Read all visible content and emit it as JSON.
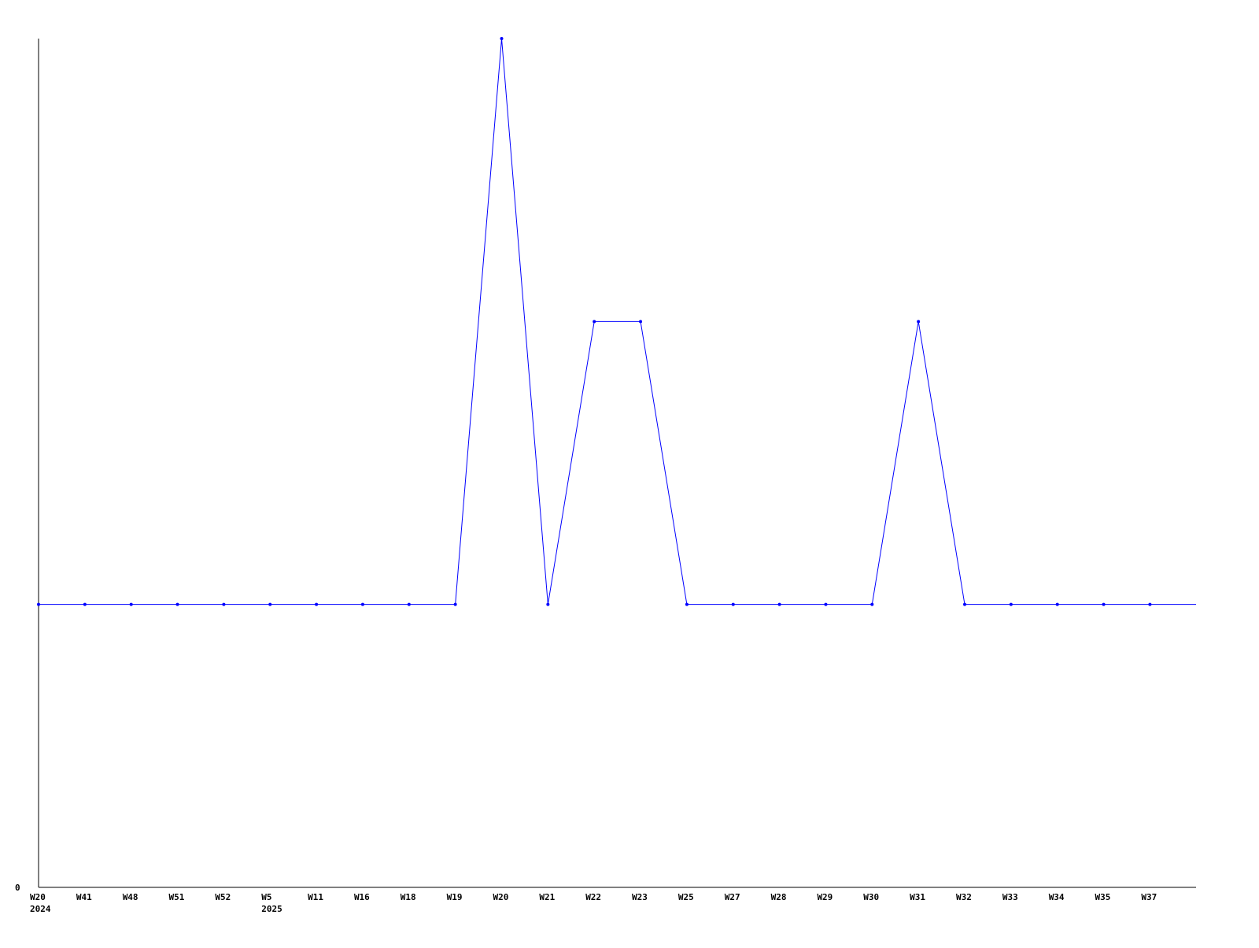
{
  "chart_data": {
    "type": "line",
    "title": "",
    "xlabel": "",
    "ylabel": "",
    "categories": [
      "W20",
      "W41",
      "W48",
      "W51",
      "W52",
      "W5",
      "W11",
      "W16",
      "W18",
      "W19",
      "W20",
      "W21",
      "W22",
      "W23",
      "W25",
      "W27",
      "W28",
      "W29",
      "W30",
      "W31",
      "W32",
      "W33",
      "W34",
      "W35",
      "W37"
    ],
    "year_labels": [
      {
        "index": 0,
        "label": "2024"
      },
      {
        "index": 5,
        "label": "2025"
      }
    ],
    "series": [
      {
        "values": [
          1,
          1,
          1,
          1,
          1,
          1,
          1,
          1,
          1,
          1,
          3,
          1,
          2,
          2,
          1,
          1,
          1,
          1,
          1,
          2,
          1,
          1,
          1,
          1,
          1
        ],
        "color": "#0000ff"
      }
    ],
    "y_tick_labels": [
      "0"
    ],
    "ylim": [
      0,
      3
    ],
    "grid": false,
    "legend": "none"
  }
}
